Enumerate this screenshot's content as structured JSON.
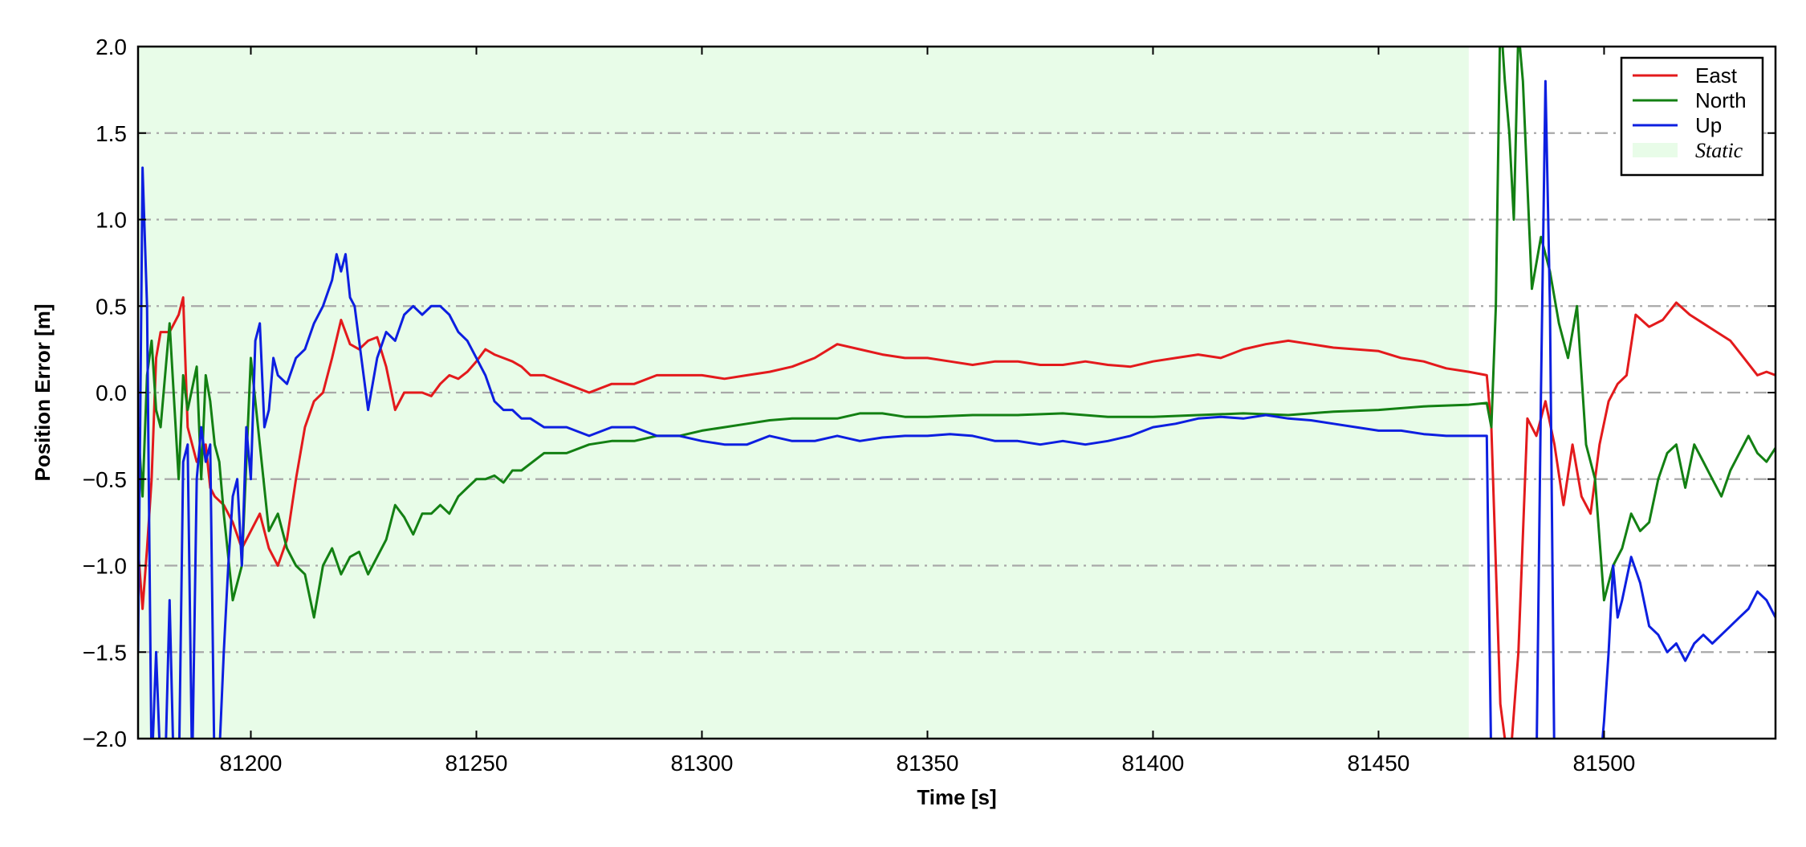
{
  "chart_data": {
    "type": "line",
    "xlabel": "Time [s]",
    "ylabel": "Position Error [m]",
    "xlim": [
      81175,
      81538
    ],
    "ylim": [
      -2.0,
      2.0
    ],
    "xticks": [
      81200,
      81250,
      81300,
      81350,
      81400,
      81450,
      81500
    ],
    "xtick_labels": [
      "81200",
      "81250",
      "81300",
      "81350",
      "81400",
      "81450",
      "81500"
    ],
    "yticks": [
      -2.0,
      -1.5,
      -1.0,
      -0.5,
      0.0,
      0.5,
      1.0,
      1.5,
      2.0
    ],
    "ytick_labels": [
      "−2.0",
      "−1.5",
      "−1.0",
      "−0.5",
      "0.0",
      "0.5",
      "1.0",
      "1.5",
      "2.0"
    ],
    "grid": {
      "axis": "y",
      "style": "dash-dot",
      "color": "#a8a8a8"
    },
    "legend": {
      "position": "top-right",
      "entries": [
        {
          "label": "East",
          "type": "line",
          "color": "#e31a1c"
        },
        {
          "label": "North",
          "type": "line",
          "color": "#138013"
        },
        {
          "label": "Up",
          "type": "line",
          "color": "#0d1fe0"
        },
        {
          "label": "Static",
          "type": "patch",
          "color": "#e8fce8"
        }
      ]
    },
    "shaded_regions": [
      {
        "label": "Static",
        "x_start": 81175,
        "x_end": 81470,
        "color": "#e8fce8"
      }
    ],
    "series": [
      {
        "name": "East",
        "color": "#e31a1c",
        "x": [
          81175,
          81176,
          81177,
          81178,
          81179,
          81180,
          81182,
          81184,
          81185,
          81186,
          81188,
          81190,
          81191,
          81192,
          81194,
          81196,
          81198,
          81200,
          81202,
          81204,
          81206,
          81208,
          81210,
          81212,
          81214,
          81216,
          81218,
          81220,
          81222,
          81224,
          81226,
          81228,
          81230,
          81232,
          81234,
          81236,
          81238,
          81240,
          81242,
          81244,
          81246,
          81248,
          81250,
          81252,
          81254,
          81256,
          81258,
          81260,
          81262,
          81265,
          81270,
          81275,
          81280,
          81285,
          81290,
          81295,
          81300,
          81305,
          81310,
          81315,
          81320,
          81325,
          81330,
          81335,
          81340,
          81345,
          81350,
          81355,
          81360,
          81365,
          81370,
          81375,
          81380,
          81385,
          81390,
          81395,
          81400,
          81405,
          81410,
          81415,
          81420,
          81425,
          81430,
          81435,
          81440,
          81445,
          81450,
          81455,
          81460,
          81465,
          81470,
          81474,
          81475,
          81477,
          81479,
          81481,
          81483,
          81485,
          81487,
          81489,
          81491,
          81493,
          81495,
          81497,
          81499,
          81501,
          81503,
          81505,
          81507,
          81510,
          81513,
          81516,
          81519,
          81522,
          81525,
          81528,
          81531,
          81534,
          81536,
          81538
        ],
        "y": [
          -0.9,
          -1.25,
          -0.9,
          -0.5,
          0.2,
          0.35,
          0.35,
          0.45,
          0.55,
          -0.2,
          -0.4,
          -0.3,
          -0.55,
          -0.6,
          -0.65,
          -0.75,
          -0.9,
          -0.8,
          -0.7,
          -0.9,
          -1.0,
          -0.85,
          -0.5,
          -0.2,
          -0.05,
          0.0,
          0.2,
          0.42,
          0.28,
          0.25,
          0.3,
          0.32,
          0.15,
          -0.1,
          0.0,
          0.0,
          0.0,
          -0.02,
          0.05,
          0.1,
          0.08,
          0.12,
          0.18,
          0.25,
          0.22,
          0.2,
          0.18,
          0.15,
          0.1,
          0.1,
          0.05,
          0.0,
          0.05,
          0.05,
          0.1,
          0.1,
          0.1,
          0.08,
          0.1,
          0.12,
          0.15,
          0.2,
          0.28,
          0.25,
          0.22,
          0.2,
          0.2,
          0.18,
          0.16,
          0.18,
          0.18,
          0.16,
          0.16,
          0.18,
          0.16,
          0.15,
          0.18,
          0.2,
          0.22,
          0.2,
          0.25,
          0.28,
          0.3,
          0.28,
          0.26,
          0.25,
          0.24,
          0.2,
          0.18,
          0.14,
          0.12,
          0.1,
          -0.2,
          -1.8,
          -2.2,
          -1.5,
          -0.15,
          -0.25,
          -0.05,
          -0.3,
          -0.65,
          -0.3,
          -0.6,
          -0.7,
          -0.3,
          -0.05,
          0.05,
          0.1,
          0.45,
          0.38,
          0.42,
          0.52,
          0.45,
          0.4,
          0.35,
          0.3,
          0.2,
          0.1,
          0.12,
          0.1
        ]
      },
      {
        "name": "North",
        "color": "#138013",
        "x": [
          81175,
          81176,
          81177,
          81178,
          81179,
          81180,
          81182,
          81184,
          81185,
          81186,
          81188,
          81189,
          81190,
          81191,
          81192,
          81193,
          81194,
          81196,
          81198,
          81200,
          81202,
          81204,
          81206,
          81208,
          81210,
          81212,
          81214,
          81216,
          81218,
          81220,
          81222,
          81224,
          81226,
          81228,
          81230,
          81232,
          81234,
          81236,
          81238,
          81240,
          81242,
          81244,
          81246,
          81248,
          81250,
          81252,
          81254,
          81256,
          81258,
          81260,
          81265,
          81270,
          81275,
          81280,
          81285,
          81290,
          81295,
          81300,
          81305,
          81310,
          81315,
          81320,
          81325,
          81330,
          81335,
          81340,
          81345,
          81350,
          81360,
          81370,
          81380,
          81390,
          81400,
          81410,
          81420,
          81430,
          81440,
          81450,
          81460,
          81470,
          81474,
          81475,
          81476,
          81477,
          81478,
          81479,
          81480,
          81481,
          81482,
          81484,
          81486,
          81488,
          81490,
          81492,
          81494,
          81496,
          81498,
          81500,
          81502,
          81504,
          81506,
          81508,
          81510,
          81512,
          81514,
          81516,
          81518,
          81520,
          81522,
          81524,
          81526,
          81528,
          81530,
          81532,
          81534,
          81536,
          81538
        ],
        "y": [
          -0.2,
          -0.6,
          0.1,
          0.3,
          -0.1,
          -0.2,
          0.4,
          -0.5,
          0.1,
          -0.1,
          0.15,
          -0.5,
          0.1,
          -0.05,
          -0.3,
          -0.4,
          -0.7,
          -1.2,
          -1.0,
          0.2,
          -0.3,
          -0.8,
          -0.7,
          -0.9,
          -1.0,
          -1.05,
          -1.3,
          -1.0,
          -0.9,
          -1.05,
          -0.95,
          -0.92,
          -1.05,
          -0.95,
          -0.85,
          -0.65,
          -0.72,
          -0.82,
          -0.7,
          -0.7,
          -0.65,
          -0.7,
          -0.6,
          -0.55,
          -0.5,
          -0.5,
          -0.48,
          -0.52,
          -0.45,
          -0.45,
          -0.35,
          -0.35,
          -0.3,
          -0.28,
          -0.28,
          -0.25,
          -0.25,
          -0.22,
          -0.2,
          -0.18,
          -0.16,
          -0.15,
          -0.15,
          -0.15,
          -0.12,
          -0.12,
          -0.14,
          -0.14,
          -0.13,
          -0.13,
          -0.12,
          -0.14,
          -0.14,
          -0.13,
          -0.12,
          -0.13,
          -0.11,
          -0.1,
          -0.08,
          -0.07,
          -0.06,
          -0.2,
          0.5,
          2.2,
          1.8,
          1.5,
          1.0,
          2.1,
          1.8,
          0.6,
          0.9,
          0.7,
          0.4,
          0.2,
          0.5,
          -0.3,
          -0.5,
          -1.2,
          -1.0,
          -0.9,
          -0.7,
          -0.8,
          -0.75,
          -0.5,
          -0.35,
          -0.3,
          -0.55,
          -0.3,
          -0.4,
          -0.5,
          -0.6,
          -0.45,
          -0.35,
          -0.25,
          -0.35,
          -0.4,
          -0.32
        ]
      },
      {
        "name": "Up",
        "color": "#0d1fe0",
        "x": [
          81175,
          81176,
          81177,
          81178,
          81179,
          81180,
          81181,
          81182,
          81183,
          81184,
          81185,
          81186,
          81187,
          81188,
          81189,
          81190,
          81191,
          81192,
          81193,
          81194,
          81195,
          81196,
          81197,
          81198,
          81199,
          81200,
          81201,
          81202,
          81203,
          81204,
          81205,
          81206,
          81208,
          81210,
          81212,
          81214,
          81216,
          81218,
          81219,
          81220,
          81221,
          81222,
          81223,
          81224,
          81226,
          81228,
          81230,
          81232,
          81234,
          81236,
          81238,
          81240,
          81242,
          81244,
          81246,
          81248,
          81250,
          81252,
          81254,
          81256,
          81258,
          81260,
          81262,
          81265,
          81270,
          81275,
          81280,
          81285,
          81290,
          81295,
          81300,
          81305,
          81310,
          81315,
          81320,
          81325,
          81330,
          81335,
          81340,
          81345,
          81350,
          81355,
          81360,
          81365,
          81370,
          81375,
          81380,
          81385,
          81390,
          81395,
          81400,
          81405,
          81410,
          81415,
          81420,
          81425,
          81430,
          81435,
          81440,
          81445,
          81450,
          81455,
          81460,
          81465,
          81470,
          81474,
          81475,
          81477,
          81479,
          81481,
          81483,
          81484,
          81485,
          81486,
          81487,
          81488,
          81489,
          81491,
          81493,
          81495,
          81497,
          81498,
          81499,
          81500,
          81501,
          81502,
          81503,
          81504,
          81506,
          81508,
          81510,
          81512,
          81514,
          81516,
          81518,
          81520,
          81522,
          81524,
          81526,
          81528,
          81530,
          81532,
          81534,
          81536,
          81538
        ],
        "y": [
          -1.5,
          1.3,
          0.5,
          -2.2,
          -1.5,
          -2.2,
          -2.2,
          -1.2,
          -2.3,
          -2.3,
          -0.4,
          -0.3,
          -2.2,
          -0.5,
          -0.2,
          -0.4,
          -0.3,
          -2.3,
          -2.1,
          -1.5,
          -1.0,
          -0.6,
          -0.5,
          -1.0,
          -0.2,
          -0.5,
          0.3,
          0.4,
          -0.2,
          -0.1,
          0.2,
          0.1,
          0.05,
          0.2,
          0.25,
          0.4,
          0.5,
          0.65,
          0.8,
          0.7,
          0.8,
          0.55,
          0.5,
          0.3,
          -0.1,
          0.2,
          0.35,
          0.3,
          0.45,
          0.5,
          0.45,
          0.5,
          0.5,
          0.45,
          0.35,
          0.3,
          0.2,
          0.1,
          -0.05,
          -0.1,
          -0.1,
          -0.15,
          -0.15,
          -0.2,
          -0.2,
          -0.25,
          -0.2,
          -0.2,
          -0.25,
          -0.25,
          -0.28,
          -0.3,
          -0.3,
          -0.25,
          -0.28,
          -0.28,
          -0.25,
          -0.28,
          -0.26,
          -0.25,
          -0.25,
          -0.24,
          -0.25,
          -0.28,
          -0.28,
          -0.3,
          -0.28,
          -0.3,
          -0.28,
          -0.25,
          -0.2,
          -0.18,
          -0.15,
          -0.14,
          -0.15,
          -0.13,
          -0.15,
          -0.16,
          -0.18,
          -0.2,
          -0.22,
          -0.22,
          -0.24,
          -0.25,
          -0.25,
          -0.25,
          -2.2,
          -2.2,
          -2.2,
          -2.2,
          -2.2,
          -2.2,
          -2.2,
          0.0,
          1.8,
          0.5,
          -2.2,
          -2.2,
          -2.2,
          -2.2,
          -2.2,
          -2.2,
          -2.2,
          -1.9,
          -1.5,
          -1.0,
          -1.3,
          -1.2,
          -0.95,
          -1.1,
          -1.35,
          -1.4,
          -1.5,
          -1.45,
          -1.55,
          -1.45,
          -1.4,
          -1.45,
          -1.4,
          -1.35,
          -1.3,
          -1.25,
          -1.15,
          -1.2,
          -1.3
        ]
      }
    ]
  }
}
